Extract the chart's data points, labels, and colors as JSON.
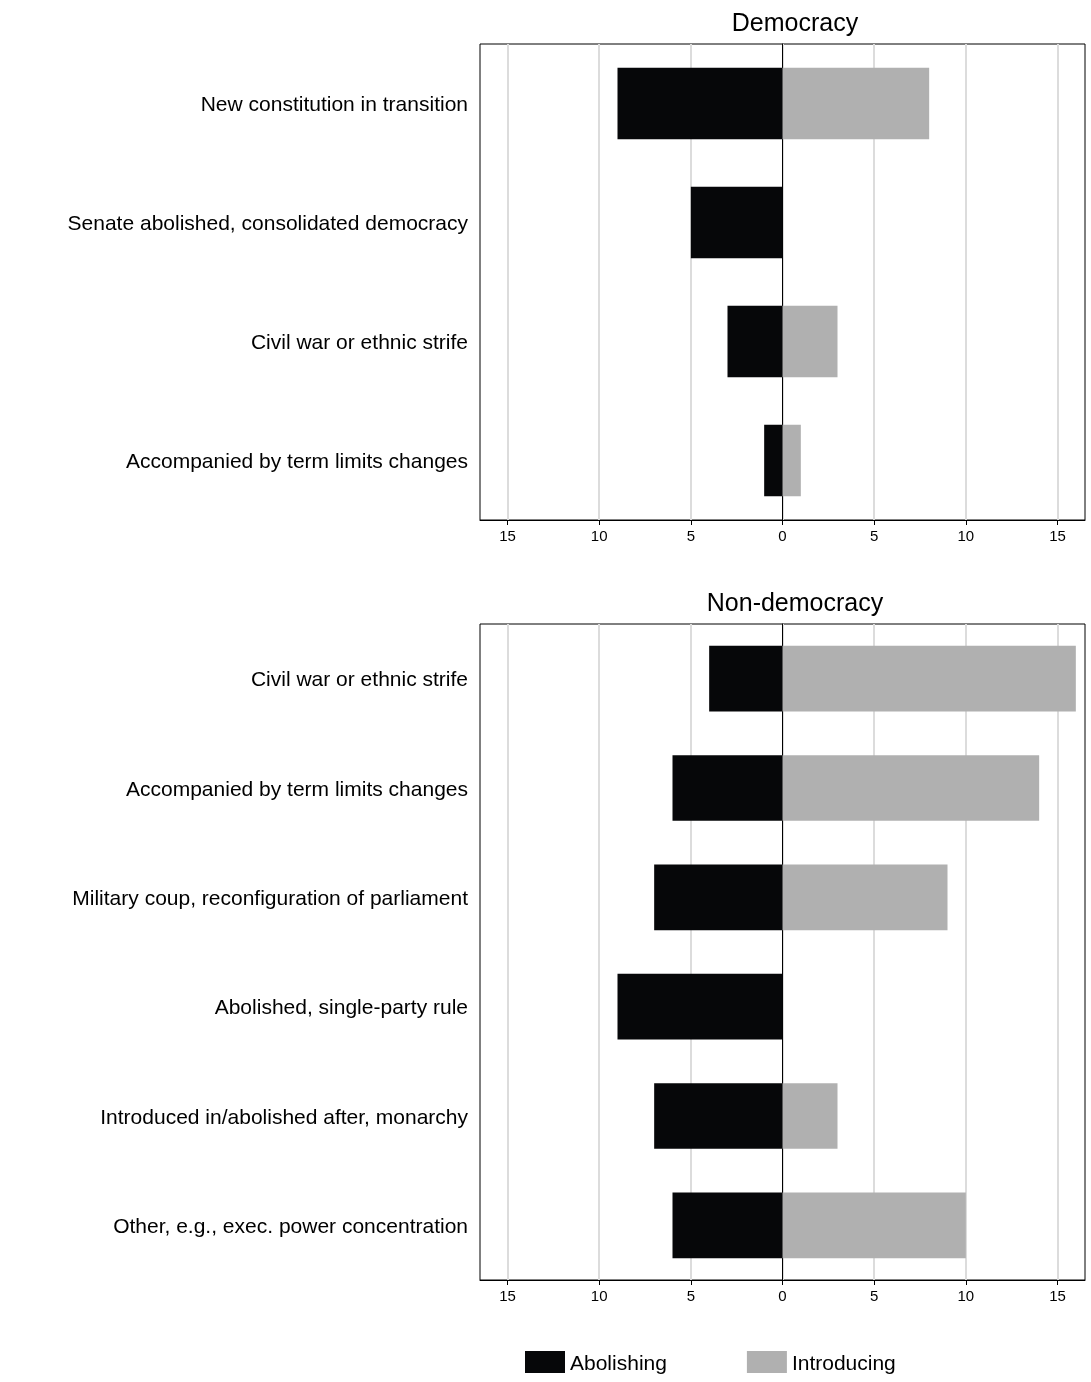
{
  "chart_data": [
    {
      "type": "bar",
      "orientation": "horizontal",
      "stacked": true,
      "title": "Democracy",
      "categories": [
        "New constitution in transition",
        "Senate abolished, consolidated democracy",
        "Civil war or ethnic strife",
        "Accompanied by term limits changes"
      ],
      "series": [
        {
          "color": "#060709",
          "values": [
            -9,
            -5,
            -3,
            -1
          ]
        },
        {
          "color": "#b0b0b0",
          "values": [
            8,
            0,
            3,
            1
          ]
        }
      ],
      "xlim": [
        -16.5,
        16.5
      ],
      "xticks": [
        {
          "value": -15,
          "label": "15"
        },
        {
          "value": -10,
          "label": "10"
        },
        {
          "value": -5,
          "label": "5"
        },
        0,
        5,
        10,
        15
      ],
      "grid": "x",
      "legend": false
    },
    {
      "type": "bar",
      "orientation": "horizontal",
      "stacked": true,
      "title": "Non-democracy",
      "categories": [
        "Civil war or ethnic strife",
        "Accompanied by term limits changes",
        "Military coup, reconfiguration of parliament",
        "Abolished, single-party rule",
        "Introduced in/abolished after, monarchy",
        "Other, e.g., exec. power concentration"
      ],
      "series": [
        {
          "name": "Abolishing",
          "color": "#060709",
          "values": [
            -4,
            -6,
            -7,
            -9,
            -7,
            -6
          ]
        },
        {
          "name": "Introducing",
          "color": "#b0b0b0",
          "values": [
            16,
            14,
            9,
            0,
            3,
            10
          ]
        }
      ],
      "xlim": [
        -16.5,
        16.5
      ],
      "xticks": [
        {
          "value": -15,
          "label": "15"
        },
        {
          "value": -10,
          "label": "10"
        },
        {
          "value": -5,
          "label": "5"
        },
        0,
        5,
        10,
        15
      ],
      "grid": "x",
      "legend": "bottom"
    }
  ]
}
